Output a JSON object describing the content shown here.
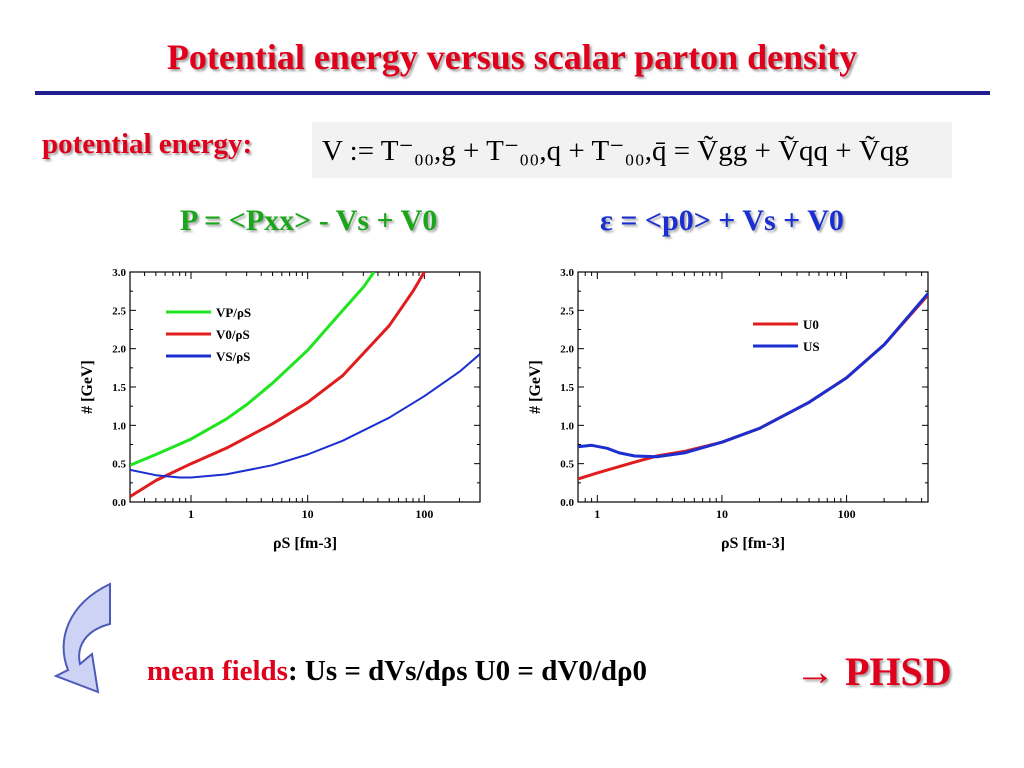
{
  "slide": {
    "title": "Potential energy versus scalar parton density",
    "potential_label": "potential energy:",
    "formula": "V := T⁻₀₀,g + T⁻₀₀,q + T⁻₀₀,q̄ = Ṽgg + Ṽqq + Ṽqg",
    "eq_left": "P = <Pxx> - Vs + V0",
    "eq_right": "ε = <p0> + Vs + V0",
    "mean_fields_word": "mean fields",
    "mean_fields_rest": ": Us = dVs/dρs     U0 = dV0/dρ0",
    "phsd": "PHSD",
    "colors": {
      "title_red": "#e0001b",
      "eq_green": "#1aa51a",
      "eq_blue": "#1b2fd0",
      "rule_navy": "#1f1f8f",
      "arrow_fill": "#cdd3f5"
    }
  },
  "chart_data": [
    {
      "type": "line",
      "ylabel": "# [GeV]",
      "xlabel": "ρS [fm-3]",
      "xscale": "log",
      "xlim": [
        0.3,
        300
      ],
      "ylim": [
        0,
        3.0
      ],
      "xticks": [
        1,
        10,
        100
      ],
      "xtick_labels": [
        "1",
        "10",
        "100"
      ],
      "yticks": [
        0,
        0.5,
        1.0,
        1.5,
        2.0,
        2.5,
        3.0
      ],
      "ytick_labels": [
        "0.0",
        "0.5",
        "1.0",
        "1.5",
        "2.0",
        "2.5",
        "3.0"
      ],
      "legend_position": "top-left",
      "series": [
        {
          "name": "VP/ρS",
          "color": "#1ee51e",
          "x": [
            0.3,
            0.5,
            1,
            2,
            3,
            5,
            10,
            20,
            30,
            37
          ],
          "y": [
            0.48,
            0.62,
            0.82,
            1.08,
            1.27,
            1.55,
            1.98,
            2.5,
            2.8,
            3.0
          ]
        },
        {
          "name": "V0/ρS",
          "color": "#e01c1c",
          "x": [
            0.3,
            0.5,
            1,
            2,
            5,
            10,
            20,
            50,
            80,
            100
          ],
          "y": [
            0.07,
            0.28,
            0.5,
            0.7,
            1.02,
            1.3,
            1.65,
            2.3,
            2.75,
            3.0
          ]
        },
        {
          "name": "VS/ρS",
          "color": "#1b2fd0",
          "x": [
            0.3,
            0.5,
            0.8,
            1,
            2,
            5,
            10,
            20,
            50,
            100,
            200,
            300
          ],
          "y": [
            0.42,
            0.35,
            0.32,
            0.32,
            0.36,
            0.48,
            0.62,
            0.8,
            1.1,
            1.38,
            1.7,
            1.93
          ]
        }
      ]
    },
    {
      "type": "line",
      "ylabel": "# [GeV]",
      "xlabel": "ρS [fm-3]",
      "xscale": "log",
      "xlim": [
        0.7,
        450
      ],
      "ylim": [
        0,
        3.0
      ],
      "xticks": [
        1,
        10,
        100
      ],
      "xtick_labels": [
        "1",
        "10",
        "100"
      ],
      "yticks": [
        0,
        0.5,
        1.0,
        1.5,
        2.0,
        2.5,
        3.0
      ],
      "ytick_labels": [
        "0.0",
        "0.5",
        "1.0",
        "1.5",
        "2.0",
        "2.5",
        "3.0"
      ],
      "legend_position": "top-right",
      "series": [
        {
          "name": "U0",
          "color": "#e01c1c",
          "x": [
            0.7,
            1,
            2,
            3,
            5,
            10,
            20,
            50,
            100,
            200,
            450
          ],
          "y": [
            0.3,
            0.38,
            0.52,
            0.6,
            0.66,
            0.78,
            0.96,
            1.3,
            1.62,
            2.05,
            2.7
          ]
        },
        {
          "name": "US",
          "color": "#1b2fd0",
          "x": [
            0.7,
            0.9,
            1.2,
            1.5,
            2,
            3,
            5,
            10,
            20,
            50,
            100,
            200,
            450
          ],
          "y": [
            0.72,
            0.74,
            0.7,
            0.64,
            0.6,
            0.59,
            0.64,
            0.78,
            0.96,
            1.3,
            1.62,
            2.05,
            2.72
          ]
        }
      ]
    }
  ]
}
